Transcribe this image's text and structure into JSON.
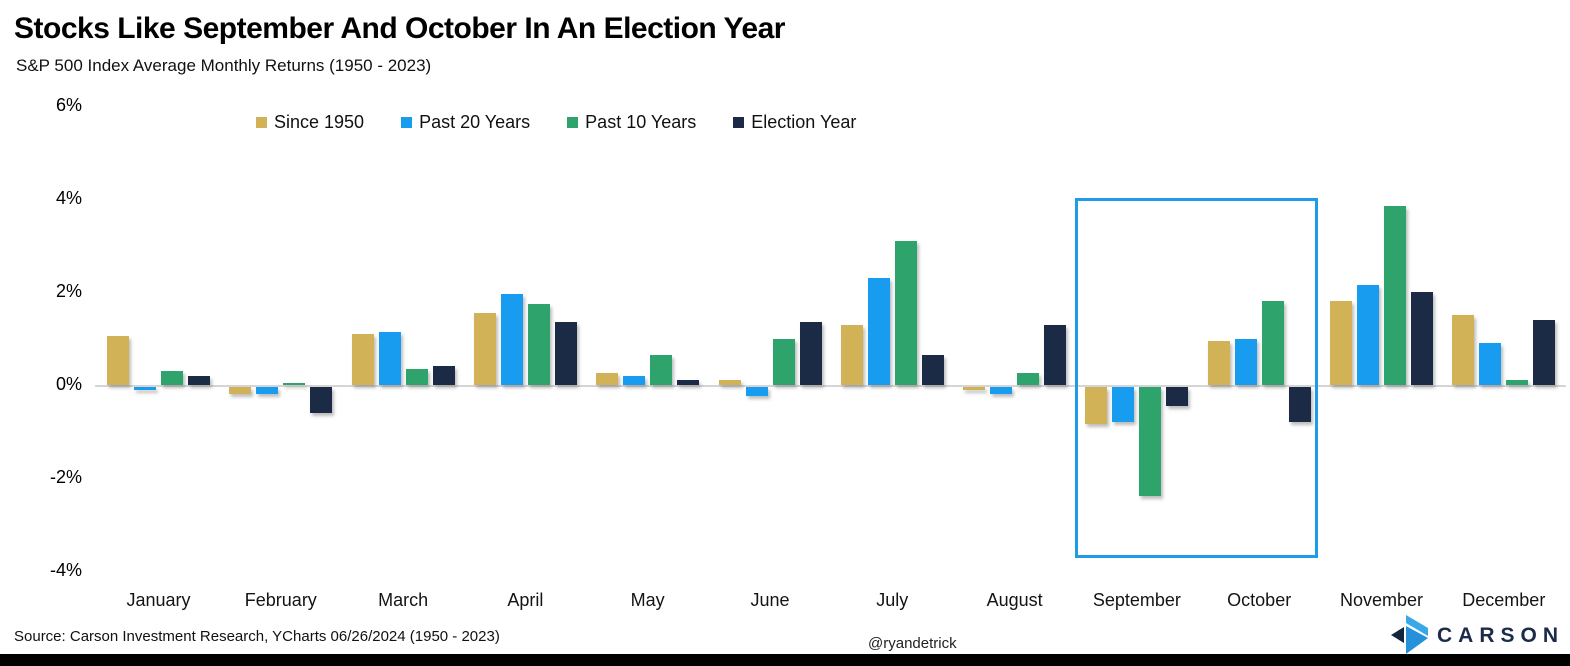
{
  "title": "Stocks Like September And October In An Election Year",
  "subtitle": "S&P 500 Index Average Monthly Returns (1950 - 2023)",
  "footer": {
    "source": "Source: Carson Investment Research, YCharts 06/26/2024 (1950 - 2023)",
    "handle": "@ryandetrick",
    "brand": "CARSON",
    "brand_icon": "carson-chevron-icon",
    "brand_color": "#1B2B4A"
  },
  "chart_data": {
    "type": "bar",
    "title": "Stocks Like September And October In An Election Year",
    "subtitle": "S&P 500 Index Average Monthly Returns (1950 - 2023)",
    "categories": [
      "January",
      "February",
      "March",
      "April",
      "May",
      "June",
      "July",
      "August",
      "September",
      "October",
      "November",
      "December"
    ],
    "series": [
      {
        "name": "Since 1950",
        "color": "#D2B256",
        "values": [
          1.05,
          -0.15,
          1.1,
          1.55,
          0.25,
          0.1,
          1.3,
          -0.05,
          -0.8,
          0.95,
          1.8,
          1.5
        ]
      },
      {
        "name": "Past 20 Years",
        "color": "#189CF0",
        "values": [
          -0.05,
          -0.15,
          1.15,
          1.95,
          0.2,
          -0.2,
          2.3,
          -0.15,
          -0.75,
          1.0,
          2.15,
          0.9
        ]
      },
      {
        "name": "Past 10 Years",
        "color": "#2EA36B",
        "values": [
          0.3,
          0.05,
          0.35,
          1.75,
          0.65,
          1.0,
          3.1,
          0.25,
          -2.35,
          1.8,
          3.85,
          0.1
        ]
      },
      {
        "name": "Election Year",
        "color": "#1B2B45",
        "values": [
          0.2,
          -0.55,
          0.4,
          1.35,
          0.1,
          1.35,
          0.65,
          1.3,
          -0.4,
          -0.75,
          2.0,
          1.4
        ]
      }
    ],
    "y_ticks": [
      "6%",
      "4%",
      "2%",
      "0%",
      "-2%",
      "-4%"
    ],
    "y_tick_values": [
      6,
      4,
      2,
      0,
      -2,
      -4
    ],
    "ylim": [
      -4,
      6
    ],
    "unit": "%",
    "grid": "zero-line-only",
    "legend_position": "top",
    "highlight": {
      "months": [
        "September",
        "October"
      ],
      "color": "#1E9BE9"
    }
  }
}
